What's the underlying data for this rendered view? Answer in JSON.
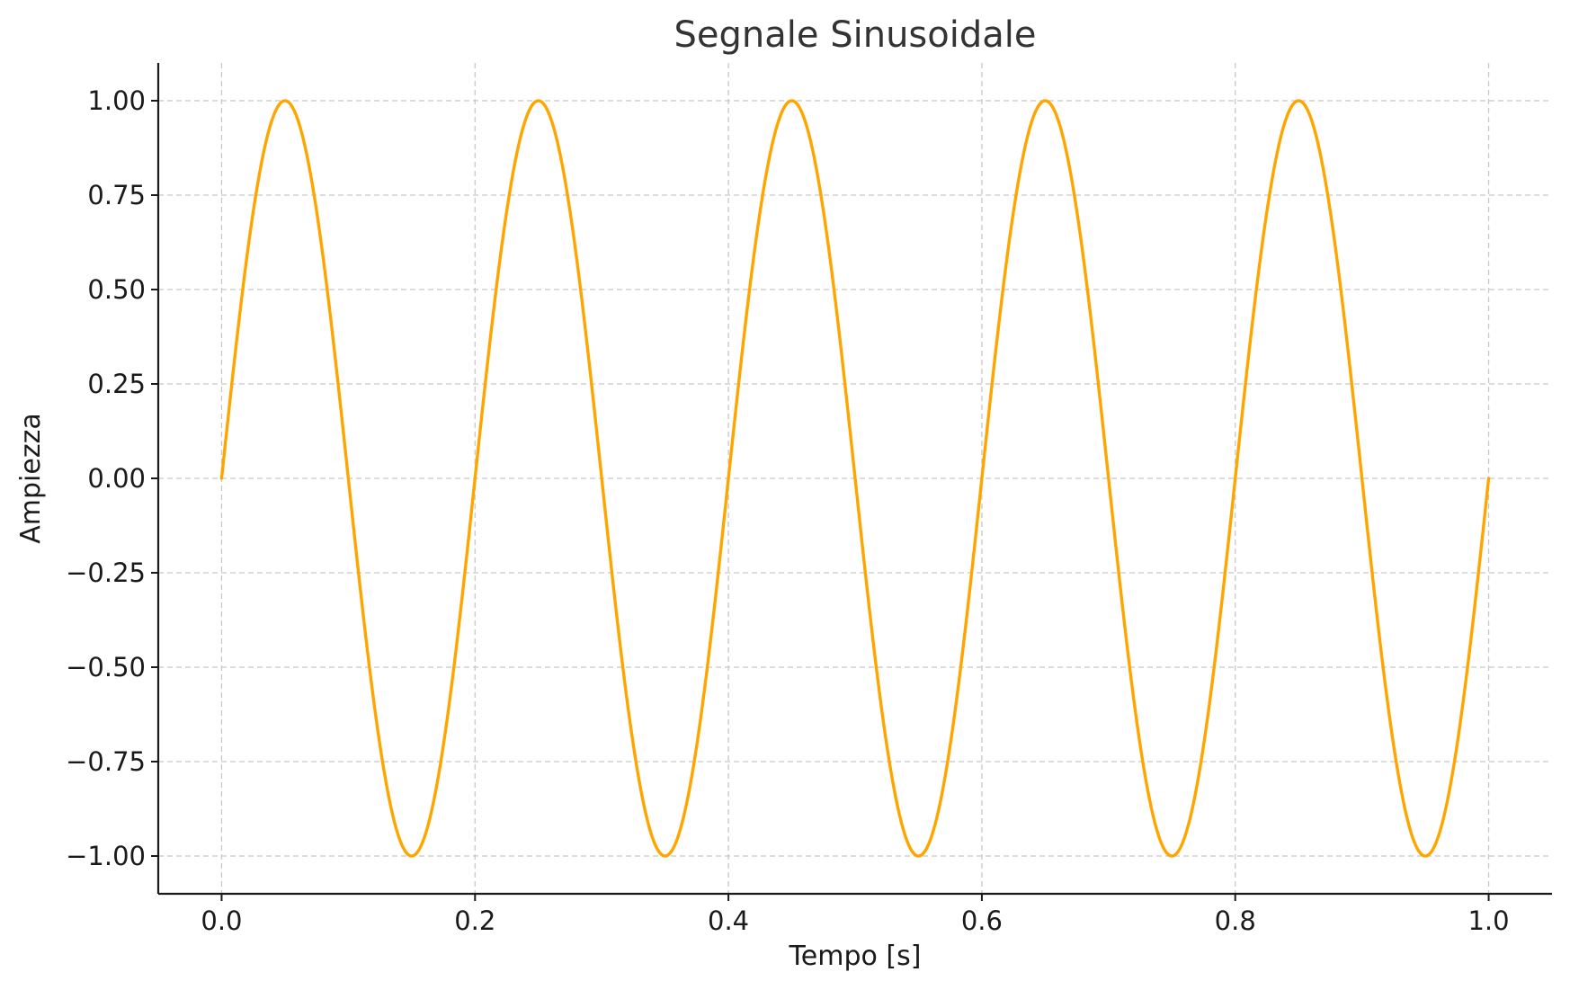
{
  "chart_data": {
    "type": "line",
    "title": "Segnale Sinusoidale",
    "xlabel": "Tempo [s]",
    "ylabel": "Ampiezza",
    "xlim": [
      -0.05,
      1.05
    ],
    "ylim": [
      -1.1,
      1.1
    ],
    "x_ticks": [
      0.0,
      0.2,
      0.4,
      0.6,
      0.8,
      1.0
    ],
    "x_tick_labels": [
      "0.0",
      "0.2",
      "0.4",
      "0.6",
      "0.8",
      "1.0"
    ],
    "y_ticks": [
      1.0,
      0.75,
      0.5,
      0.25,
      0.0,
      -0.25,
      -0.5,
      -0.75,
      -1.0
    ],
    "y_tick_labels": [
      "1.00",
      "0.75",
      "0.50",
      "0.25",
      "0.00",
      "−0.25",
      "−0.50",
      "−0.75",
      "−1.00"
    ],
    "grid": true,
    "series": [
      {
        "function": "sin(2π·5·t)",
        "frequency_hz": 5,
        "amplitude": 1,
        "x_range": [
          0,
          1
        ],
        "color": "#FFA500"
      }
    ]
  }
}
